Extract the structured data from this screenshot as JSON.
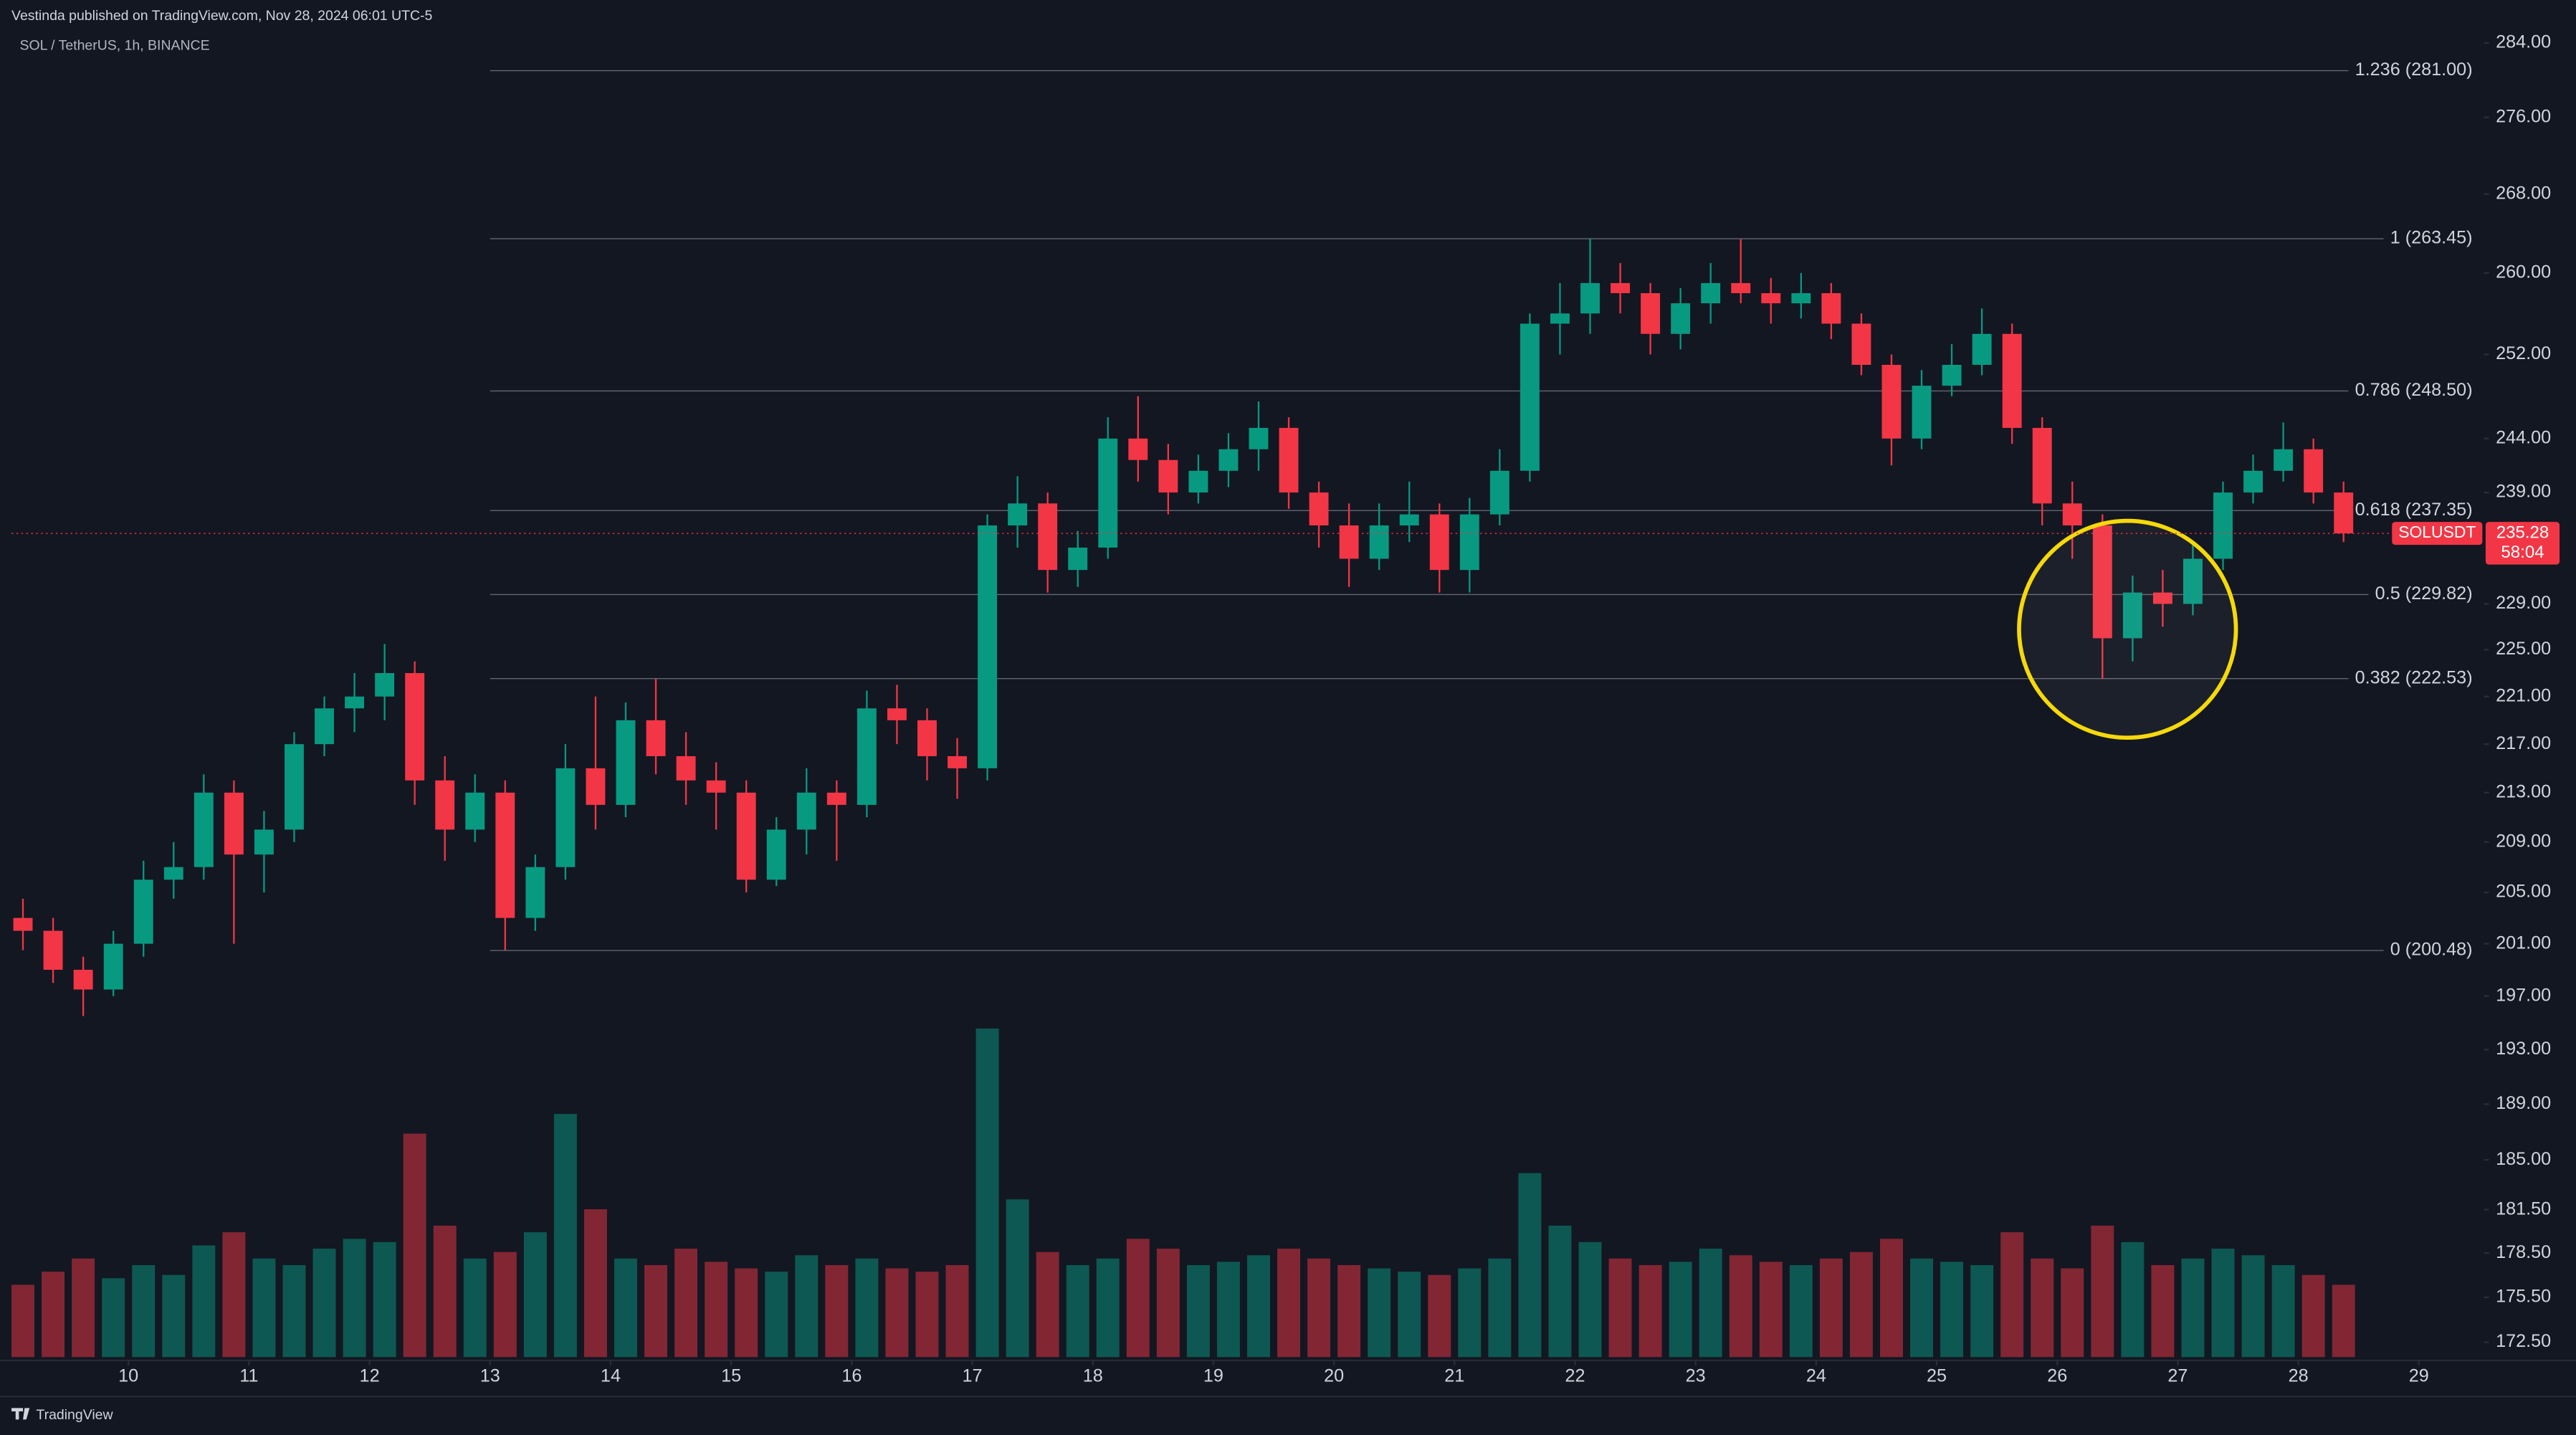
{
  "header": {
    "published": "Vestinda published on TradingView.com, Nov 28, 2024 06:01 UTC-5",
    "footer": "TradingView"
  },
  "chart_data": {
    "type": "candlestick",
    "title": "SOL / TetherUS, 1h, BINANCE",
    "x": [
      9,
      9.25,
      9.5,
      9.75,
      10,
      10.25,
      10.5,
      10.75,
      11,
      11.25,
      11.5,
      11.75,
      12,
      12.25,
      12.5,
      12.75,
      13,
      13.25,
      13.5,
      13.75,
      14,
      14.25,
      14.5,
      14.75,
      15,
      15.25,
      15.5,
      15.75,
      16,
      16.25,
      16.5,
      16.75,
      17,
      17.25,
      17.5,
      17.75,
      18,
      18.25,
      18.5,
      18.75,
      19,
      19.25,
      19.5,
      19.75,
      20,
      20.25,
      20.5,
      20.75,
      21,
      21.25,
      21.5,
      21.75,
      22,
      22.25,
      22.5,
      22.75,
      23,
      23.25,
      23.5,
      23.75,
      24,
      24.25,
      24.5,
      24.75,
      25,
      25.25,
      25.5,
      25.75,
      26,
      26.25,
      26.5,
      26.75,
      27,
      27.25,
      27.5,
      27.75,
      28,
      28.25
    ],
    "open": [
      203,
      202,
      199,
      197.5,
      201,
      206,
      207,
      213,
      208,
      210,
      217,
      220,
      221,
      223,
      214,
      210,
      213,
      203,
      207,
      215,
      212,
      219,
      216,
      214,
      213,
      206,
      210,
      213,
      212,
      220,
      219,
      216,
      215,
      236,
      238,
      232,
      234,
      244,
      242,
      239,
      241,
      243,
      245,
      239,
      236,
      233,
      236,
      237,
      232,
      237,
      241,
      255,
      256,
      259,
      258,
      254,
      257,
      259,
      258,
      257,
      258,
      255,
      251,
      244,
      249,
      251,
      254,
      245,
      238,
      236,
      226,
      230,
      229,
      233,
      239,
      241,
      243,
      239
    ],
    "high": [
      204.5,
      203,
      200,
      202,
      207.5,
      209,
      214.5,
      214,
      211.5,
      218,
      221,
      223,
      225.5,
      224,
      216,
      214.5,
      214,
      208,
      217,
      221,
      220.5,
      222.5,
      218,
      215.5,
      214,
      211,
      215,
      214,
      221.5,
      222,
      220,
      217.5,
      237,
      240.5,
      239,
      235.5,
      246,
      248,
      243.5,
      242.5,
      244.5,
      247.5,
      246,
      240,
      238,
      238,
      240,
      238,
      238.5,
      243,
      256,
      259,
      263.45,
      261,
      259,
      258.5,
      261,
      263.4,
      259.5,
      260,
      259,
      256,
      252,
      250.5,
      253,
      256.5,
      255,
      246,
      240,
      237,
      231.5,
      232,
      234.5,
      240,
      242.5,
      245.5,
      244,
      240
    ],
    "low": [
      200.5,
      198,
      195.5,
      197,
      200,
      204.5,
      206,
      201,
      205,
      209,
      216,
      218,
      219,
      212,
      207.5,
      209,
      200.5,
      202,
      206,
      210,
      211,
      214.5,
      212,
      210,
      205,
      205.5,
      208,
      207.5,
      211,
      217,
      214,
      212.5,
      214,
      234,
      230,
      230.5,
      233,
      240,
      237,
      238,
      239.5,
      241,
      237.5,
      234,
      230.5,
      232,
      234.5,
      230,
      230,
      236,
      240,
      252,
      254,
      256,
      252,
      252.5,
      255,
      257,
      255,
      255.5,
      253.5,
      250,
      241.5,
      243,
      248,
      250,
      243.5,
      236,
      233,
      222.5,
      224,
      227,
      228,
      232,
      238,
      240,
      238,
      234.5
    ],
    "close": [
      202,
      199,
      197.5,
      201,
      206,
      207,
      213,
      208,
      210,
      217,
      220,
      221,
      223,
      214,
      210,
      213,
      203,
      207,
      215,
      212,
      219,
      216,
      214,
      213,
      206,
      210,
      213,
      212,
      220,
      219,
      216,
      215,
      236,
      238,
      232,
      234,
      244,
      242,
      239,
      241,
      243,
      245,
      239,
      236,
      233,
      236,
      237,
      232,
      237,
      241,
      255,
      256,
      259,
      258,
      254,
      257,
      259,
      258,
      257,
      258,
      255,
      251,
      244,
      249,
      251,
      254,
      245,
      238,
      236,
      226,
      230,
      229,
      233,
      239,
      241,
      243,
      239,
      235.28
    ],
    "volume": [
      22,
      26,
      30,
      24,
      28,
      25,
      34,
      38,
      30,
      28,
      33,
      36,
      35,
      68,
      40,
      30,
      32,
      38,
      74,
      45,
      30,
      28,
      33,
      29,
      27,
      26,
      31,
      28,
      30,
      27,
      26,
      28,
      100,
      48,
      32,
      28,
      30,
      36,
      33,
      28,
      29,
      31,
      33,
      30,
      28,
      27,
      26,
      25,
      27,
      30,
      56,
      40,
      35,
      30,
      28,
      29,
      33,
      31,
      29,
      28,
      30,
      32,
      36,
      30,
      29,
      28,
      38,
      30,
      27,
      40,
      35,
      28,
      30,
      33,
      31,
      28,
      25,
      22
    ],
    "up_color": "#089981",
    "down_color": "#f23645",
    "log_scale": true,
    "ylim": [
      171.3,
      286
    ],
    "yticks": [
      {
        "value": 172.5,
        "label": "172.50"
      },
      {
        "value": 175.5,
        "label": "175.50"
      },
      {
        "value": 178.5,
        "label": "178.50"
      },
      {
        "value": 181.5,
        "label": "181.50"
      },
      {
        "value": 185,
        "label": "185.00"
      },
      {
        "value": 189,
        "label": "189.00"
      },
      {
        "value": 193,
        "label": "193.00"
      },
      {
        "value": 197,
        "label": "197.00"
      },
      {
        "value": 201,
        "label": "201.00"
      },
      {
        "value": 205,
        "label": "205.00"
      },
      {
        "value": 209,
        "label": "209.00"
      },
      {
        "value": 213,
        "label": "213.00"
      },
      {
        "value": 217,
        "label": "217.00"
      },
      {
        "value": 221,
        "label": "221.00"
      },
      {
        "value": 225,
        "label": "225.00"
      },
      {
        "value": 229,
        "label": "229.00"
      },
      {
        "value": 239,
        "label": "239.00"
      },
      {
        "value": 244,
        "label": "244.00"
      },
      {
        "value": 252,
        "label": "252.00"
      },
      {
        "value": 260,
        "label": "260.00"
      },
      {
        "value": 268,
        "label": "268.00"
      },
      {
        "value": 276,
        "label": "276.00"
      },
      {
        "value": 284,
        "label": "284.00"
      }
    ],
    "xlim": [
      9.03,
      29.54
    ],
    "xticks": [
      10,
      11,
      12,
      13,
      14,
      15,
      16,
      17,
      18,
      19,
      20,
      21,
      22,
      23,
      24,
      25,
      26,
      27,
      28,
      29
    ],
    "fib_start_x": 13,
    "fib_levels": {
      "values": [
        281,
        263.45,
        248.5,
        237.35,
        229.82,
        222.53,
        200.48
      ],
      "labels": [
        "1.236 (281.00)",
        "1 (263.45)",
        "0.786 (248.50)",
        "0.618 (237.35)",
        "0.5 (229.82)",
        "0.382 (222.53)",
        "0 (200.48)"
      ]
    },
    "last_price": {
      "symbol": "SOLUSDT",
      "value": 235.28,
      "countdown": "58:04"
    }
  }
}
